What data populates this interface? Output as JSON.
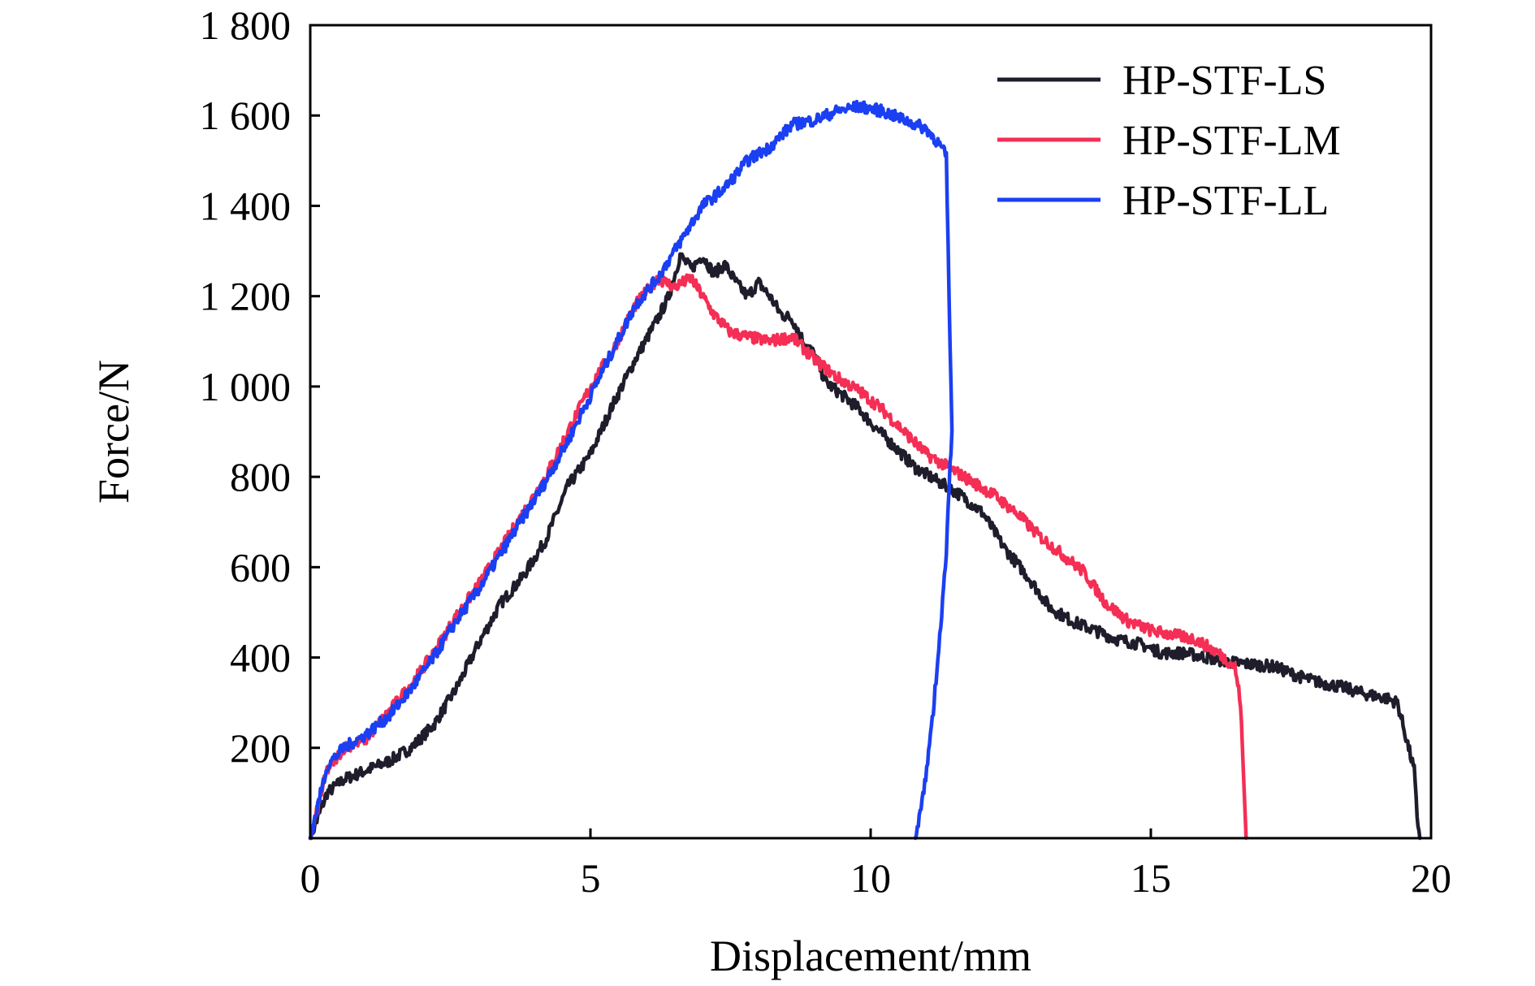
{
  "chart_data": {
    "type": "line",
    "title": "",
    "xlabel": "Displacement/mm",
    "ylabel": "Force/N",
    "xlim": [
      0,
      20
    ],
    "ylim": [
      0,
      1800
    ],
    "xticks": [
      {
        "value": 0,
        "label": "0"
      },
      {
        "value": 5,
        "label": "5"
      },
      {
        "value": 10,
        "label": "10"
      },
      {
        "value": 15,
        "label": "15"
      },
      {
        "value": 20,
        "label": "20"
      }
    ],
    "yticks": [
      {
        "value": 200,
        "label": "200"
      },
      {
        "value": 400,
        "label": "400"
      },
      {
        "value": 600,
        "label": "600"
      },
      {
        "value": 800,
        "label": "800"
      },
      {
        "value": 1000,
        "label": "1 000"
      },
      {
        "value": 1200,
        "label": "1 200"
      },
      {
        "value": 1400,
        "label": "1 400"
      },
      {
        "value": 1600,
        "label": "1 600"
      },
      {
        "value": 1800,
        "label": "1 800"
      }
    ],
    "grid": false,
    "legend_position": "top-right",
    "series": [
      {
        "name": "HP-STF-LS",
        "color": "#1f1d2b",
        "x": [
          0,
          0.3,
          0.6,
          1.0,
          1.4,
          1.8,
          2.2,
          2.6,
          3.0,
          3.4,
          3.8,
          4.2,
          4.6,
          5.0,
          5.4,
          5.8,
          6.2,
          6.4,
          6.6,
          6.8,
          7.0,
          7.2,
          7.4,
          7.6,
          7.8,
          8.0,
          8.2,
          8.4,
          8.6,
          8.8,
          9.0,
          9.2,
          9.4,
          9.6,
          9.8,
          10.0,
          10.4,
          10.8,
          11.2,
          11.6,
          12.0,
          12.4,
          12.8,
          13.2,
          13.6,
          14.0,
          14.4,
          14.8,
          15.2,
          15.6,
          16.0,
          16.4,
          16.8,
          17.2,
          17.6,
          18.0,
          18.4,
          18.8,
          19.2,
          19.4,
          19.5,
          19.6,
          19.7,
          19.75,
          19.8
        ],
        "y": [
          0,
          100,
          130,
          150,
          170,
          200,
          250,
          330,
          430,
          520,
          580,
          660,
          780,
          850,
          960,
          1060,
          1150,
          1200,
          1290,
          1260,
          1290,
          1250,
          1270,
          1230,
          1200,
          1230,
          1200,
          1160,
          1150,
          1100,
          1070,
          1010,
          990,
          970,
          950,
          920,
          870,
          820,
          790,
          760,
          720,
          640,
          580,
          510,
          480,
          460,
          440,
          430,
          410,
          410,
          400,
          390,
          385,
          380,
          360,
          345,
          335,
          320,
          310,
          300,
          250,
          200,
          150,
          50,
          0
        ]
      },
      {
        "name": "HP-STF-LM",
        "color": "#f42e55",
        "x": [
          0,
          0.3,
          0.6,
          1.0,
          1.4,
          1.8,
          2.2,
          2.6,
          3.0,
          3.4,
          3.8,
          4.2,
          4.6,
          5.0,
          5.4,
          5.8,
          6.2,
          6.5,
          6.8,
          7.0,
          7.2,
          7.5,
          7.8,
          8.2,
          8.6,
          9.0,
          9.4,
          9.8,
          10.2,
          10.6,
          11.0,
          11.4,
          11.8,
          12.2,
          12.6,
          13.0,
          13.4,
          13.8,
          14.2,
          14.6,
          15.0,
          15.4,
          15.8,
          16.2,
          16.5,
          16.6,
          16.65,
          16.7
        ],
        "y": [
          0,
          150,
          200,
          220,
          280,
          340,
          410,
          490,
          560,
          640,
          720,
          800,
          900,
          1000,
          1080,
          1180,
          1240,
          1220,
          1240,
          1200,
          1160,
          1120,
          1110,
          1100,
          1110,
          1060,
          1020,
          990,
          950,
          900,
          850,
          820,
          790,
          760,
          720,
          670,
          630,
          590,
          520,
          480,
          460,
          450,
          440,
          410,
          380,
          300,
          150,
          0
        ]
      },
      {
        "name": "HP-STF-LL",
        "color": "#1b3ff2",
        "x": [
          0,
          0.3,
          0.6,
          1.0,
          1.4,
          1.8,
          2.2,
          2.6,
          3.0,
          3.4,
          3.8,
          4.2,
          4.6,
          5.0,
          5.4,
          5.8,
          6.2,
          6.5,
          6.8,
          7.0,
          7.4,
          7.8,
          8.2,
          8.6,
          9.0,
          9.4,
          9.8,
          10.2,
          10.6,
          11.0,
          11.2,
          11.35,
          11.4,
          11.45,
          11.4,
          11.35,
          11.3,
          11.2,
          11.1,
          11.0,
          10.9,
          10.8
        ],
        "y": [
          0,
          160,
          200,
          230,
          270,
          330,
          400,
          480,
          550,
          630,
          710,
          790,
          880,
          980,
          1080,
          1180,
          1240,
          1300,
          1360,
          1400,
          1440,
          1500,
          1530,
          1580,
          1590,
          1610,
          1620,
          1610,
          1590,
          1570,
          1540,
          1510,
          1200,
          900,
          780,
          640,
          550,
          400,
          260,
          150,
          60,
          0
        ]
      }
    ]
  }
}
